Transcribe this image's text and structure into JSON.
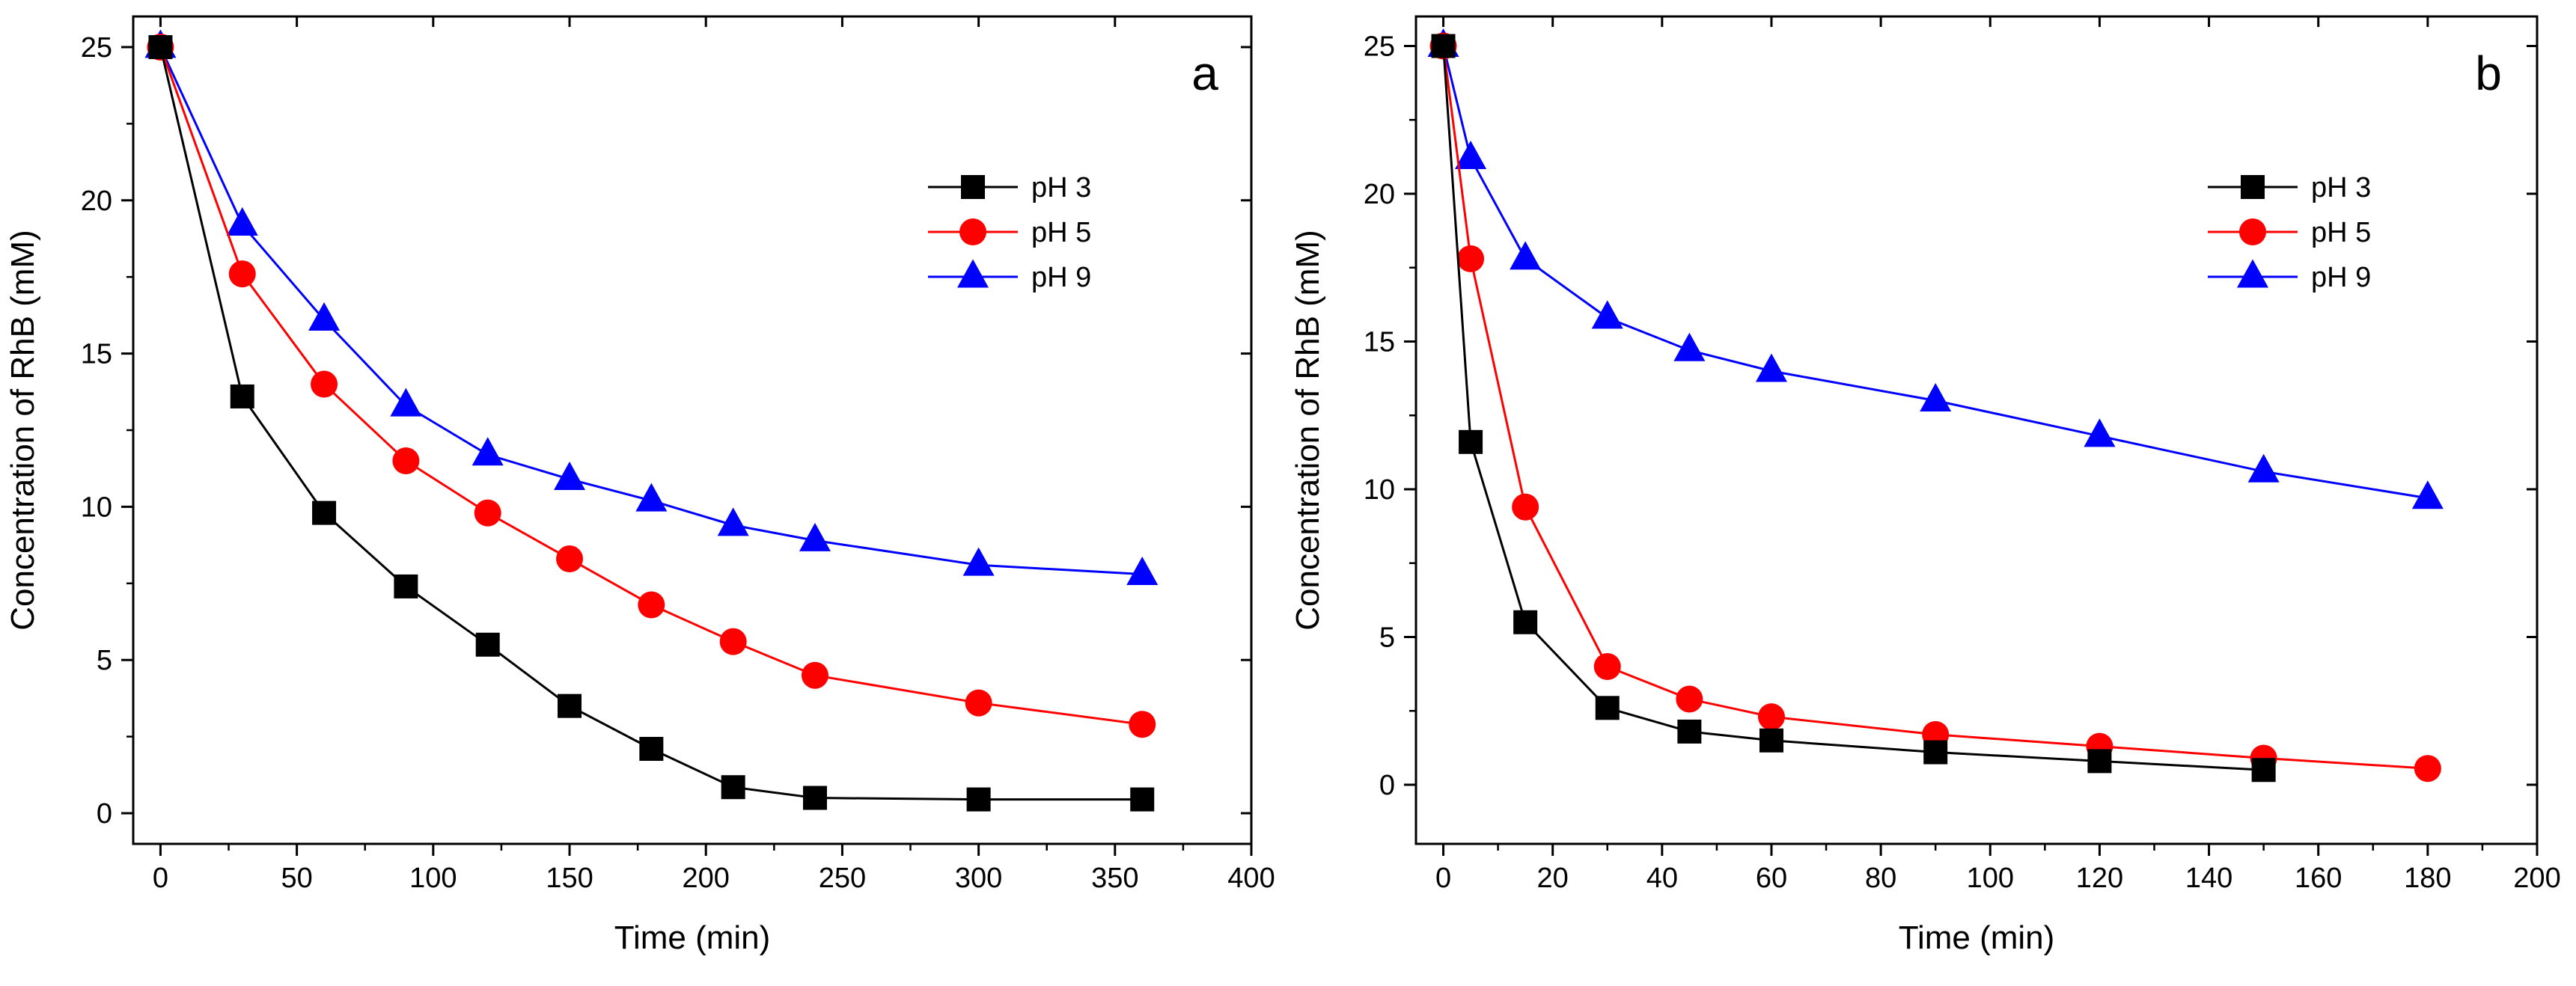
{
  "chart_data": [
    {
      "type": "line",
      "panel_label": "a",
      "xlabel": "Time (min)",
      "ylabel": "Concentration of RhB (mM)",
      "xlim": [
        -10,
        400
      ],
      "ylim": [
        -1,
        26
      ],
      "xticks": [
        0,
        50,
        100,
        150,
        200,
        250,
        300,
        350,
        400
      ],
      "yticks": [
        0,
        5,
        10,
        15,
        20,
        25
      ],
      "xtick_labels": [
        "0",
        "50",
        "100",
        "150",
        "200",
        "250",
        "300",
        "350",
        "400"
      ],
      "ytick_labels": [
        "0",
        "5",
        "10",
        "15",
        "20",
        "25"
      ],
      "grid": false,
      "legend_position": "top-right",
      "series": [
        {
          "name": "pH 3",
          "color": "#000000",
          "marker": "square",
          "x": [
            0,
            30,
            60,
            90,
            120,
            150,
            180,
            210,
            240,
            300,
            360
          ],
          "values": [
            25.0,
            13.6,
            9.8,
            7.4,
            5.5,
            3.5,
            2.1,
            0.85,
            0.5,
            0.45,
            0.45
          ]
        },
        {
          "name": "pH 5",
          "color": "#ff0000",
          "marker": "circle",
          "x": [
            0,
            30,
            60,
            90,
            120,
            150,
            180,
            210,
            240,
            300,
            360
          ],
          "values": [
            25.0,
            17.6,
            14.0,
            11.5,
            9.8,
            8.3,
            6.8,
            5.6,
            4.5,
            3.6,
            2.9
          ]
        },
        {
          "name": "pH 9",
          "color": "#0000ff",
          "marker": "triangle",
          "x": [
            0,
            30,
            60,
            90,
            120,
            150,
            180,
            210,
            240,
            300,
            360
          ],
          "values": [
            25.0,
            19.2,
            16.1,
            13.3,
            11.7,
            10.9,
            10.2,
            9.4,
            8.9,
            8.1,
            7.8
          ]
        }
      ]
    },
    {
      "type": "line",
      "panel_label": "b",
      "xlabel": "Time (min)",
      "ylabel": "Concentration of RhB (mM)",
      "xlim": [
        -5,
        200
      ],
      "ylim": [
        -2,
        26
      ],
      "xticks": [
        0,
        20,
        40,
        60,
        80,
        100,
        120,
        140,
        160,
        180,
        200
      ],
      "yticks": [
        0,
        5,
        10,
        15,
        20,
        25
      ],
      "xtick_labels": [
        "0",
        "20",
        "40",
        "60",
        "80",
        "100",
        "120",
        "140",
        "160",
        "180",
        "200"
      ],
      "ytick_labels": [
        "0",
        "5",
        "10",
        "15",
        "20",
        "25"
      ],
      "grid": false,
      "legend_position": "top-right",
      "series": [
        {
          "name": "pH 3",
          "color": "#000000",
          "marker": "square",
          "x": [
            0,
            5,
            15,
            30,
            45,
            60,
            90,
            120,
            150
          ],
          "values": [
            25.0,
            11.6,
            5.5,
            2.6,
            1.8,
            1.5,
            1.1,
            0.8,
            0.5
          ]
        },
        {
          "name": "pH 5",
          "color": "#ff0000",
          "marker": "circle",
          "x": [
            0,
            5,
            15,
            30,
            45,
            60,
            90,
            120,
            150,
            180
          ],
          "values": [
            25.0,
            17.8,
            9.4,
            4.0,
            2.9,
            2.3,
            1.7,
            1.3,
            0.9,
            0.55
          ]
        },
        {
          "name": "pH 9",
          "color": "#0000ff",
          "marker": "triangle",
          "x": [
            0,
            5,
            15,
            30,
            45,
            60,
            90,
            120,
            150,
            180
          ],
          "values": [
            25.0,
            21.2,
            17.8,
            15.8,
            14.7,
            14.0,
            13.0,
            11.8,
            10.6,
            9.7
          ]
        }
      ]
    }
  ]
}
